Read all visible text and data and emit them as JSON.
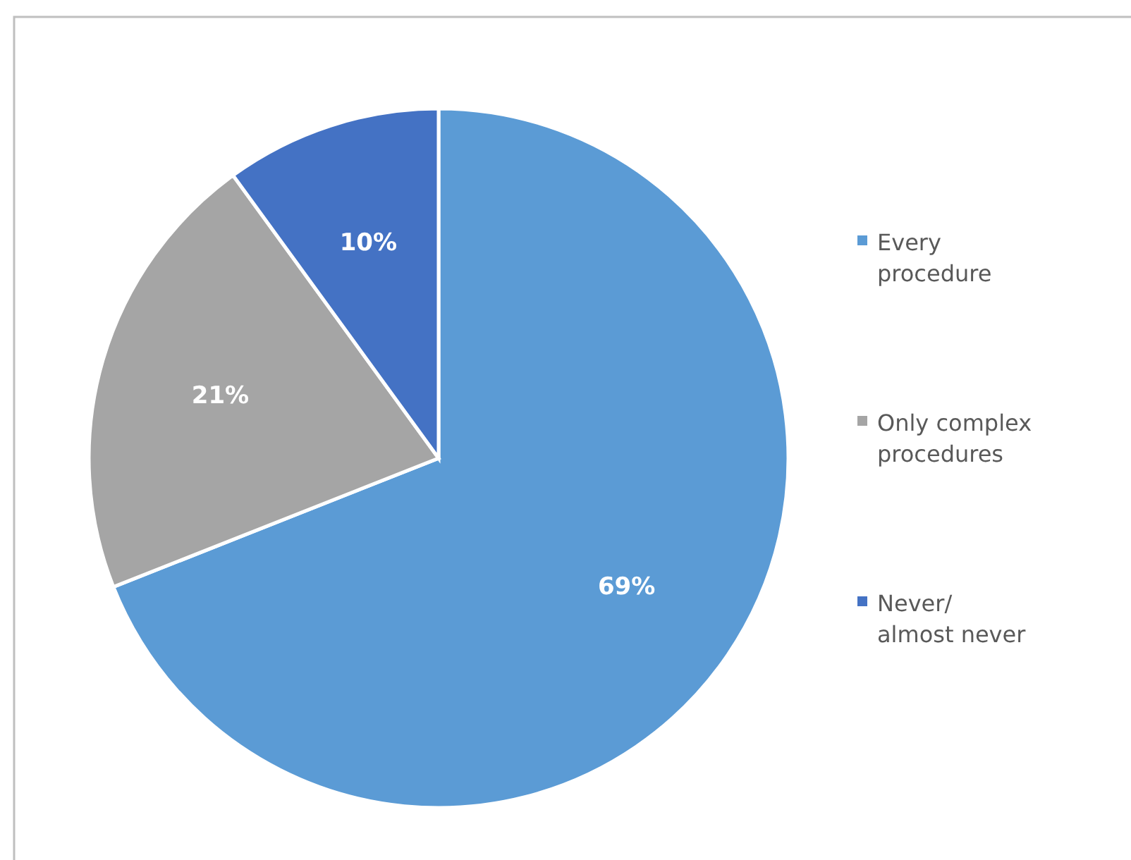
{
  "chart_data": {
    "type": "pie",
    "categories": [
      "Every procedure",
      "Only complex procedures",
      "Never/almost never"
    ],
    "values": [
      69,
      21,
      10
    ],
    "value_labels": [
      "69%",
      "21%",
      "10%"
    ],
    "colors": [
      "#5b9bd5",
      "#a5a5a5",
      "#4472c4"
    ],
    "legend": "right"
  }
}
